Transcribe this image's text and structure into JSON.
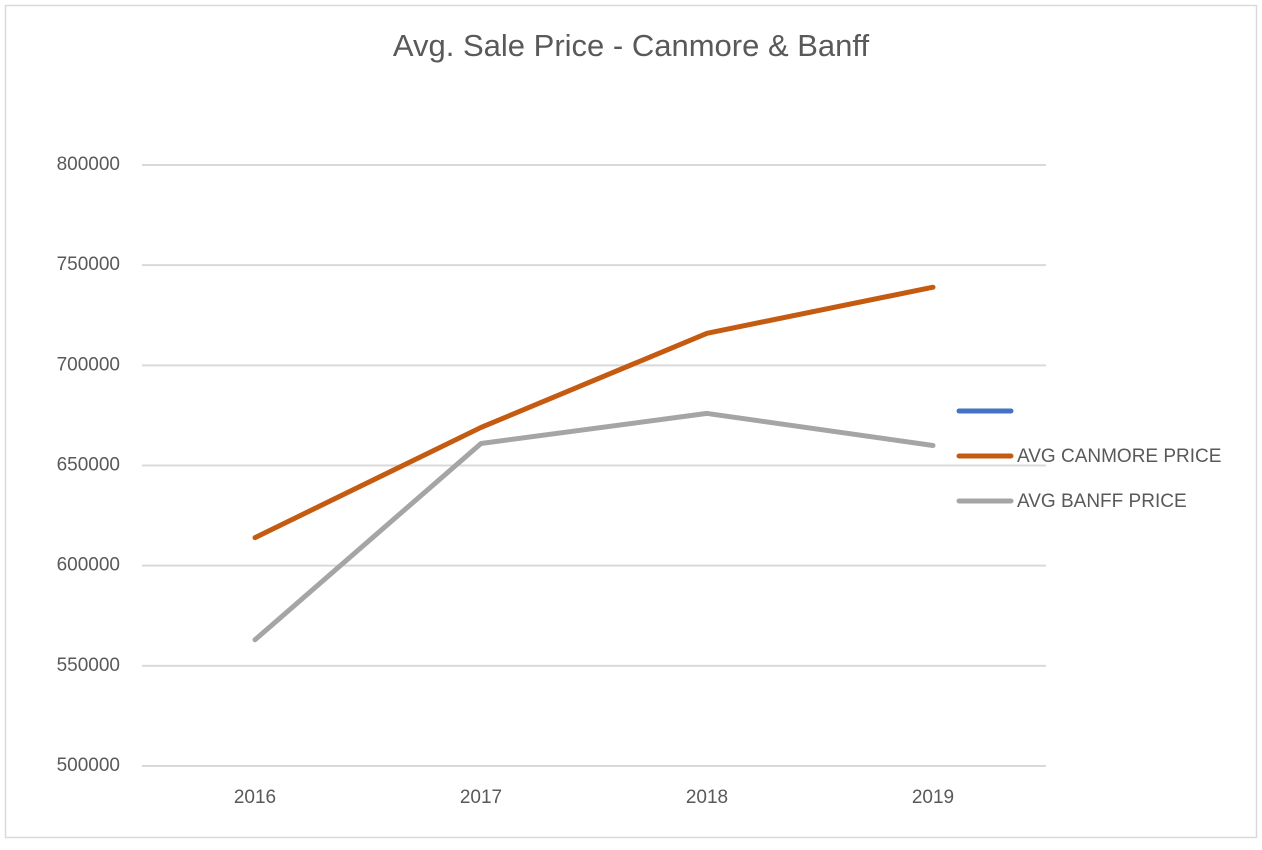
{
  "chart_data": {
    "type": "line",
    "title": "Avg. Sale Price - Canmore & Banff",
    "categories": [
      "2016",
      "2017",
      "2018",
      "2019"
    ],
    "series": [
      {
        "color": "#4472c4",
        "values": [
          null,
          null,
          null,
          null
        ]
      },
      {
        "name": "AVG CANMORE PRICE",
        "color": "#c55a11",
        "values": [
          614000,
          669000,
          716000,
          739000
        ]
      },
      {
        "name": "AVG BANFF PRICE",
        "color": "#a5a5a5",
        "values": [
          563000,
          661000,
          676000,
          660000
        ]
      }
    ],
    "ylim": [
      500000,
      800000
    ],
    "yticks": [
      500000,
      550000,
      600000,
      650000,
      700000,
      750000,
      800000
    ],
    "grid": true,
    "legend": "right"
  }
}
